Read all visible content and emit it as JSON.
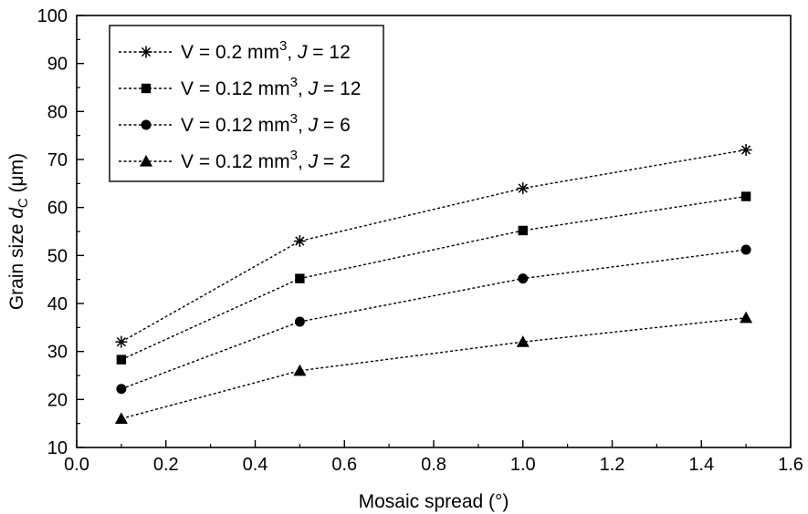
{
  "chart_data": {
    "type": "line",
    "title": "",
    "xlabel": "Mosaic spread (°)",
    "ylabel": {
      "prefix": "Grain size ",
      "symbol": "d",
      "subscript": "C",
      "suffix": " (μm)"
    },
    "xlim": [
      0.0,
      1.6
    ],
    "ylim": [
      10,
      100
    ],
    "xticks": [
      "0.0",
      "0.2",
      "0.4",
      "0.6",
      "0.8",
      "1.0",
      "1.2",
      "1.4",
      "1.6"
    ],
    "yticks": [
      "10",
      "20",
      "30",
      "40",
      "50",
      "60",
      "70",
      "80",
      "90",
      "100"
    ],
    "grid": false,
    "legend_position": "top-left",
    "x": [
      0.1,
      0.5,
      1.0,
      1.5
    ],
    "series": [
      {
        "marker": "asterisk",
        "values": [
          32,
          53,
          64,
          72
        ],
        "label": {
          "v": "V = 0.2 mm",
          "exp": "3",
          "sep": ", ",
          "j": "J",
          "eq": " = 12"
        }
      },
      {
        "marker": "square",
        "values": [
          28.3,
          45.2,
          55.2,
          62.3
        ],
        "label": {
          "v": "V = 0.12 mm",
          "exp": "3",
          "sep": ", ",
          "j": "J",
          "eq": " = 12"
        }
      },
      {
        "marker": "circle",
        "values": [
          22.2,
          36.2,
          45.2,
          51.2
        ],
        "label": {
          "v": "V = 0.12 mm",
          "exp": "3",
          "sep": ", ",
          "j": "J",
          "eq": " = 6"
        }
      },
      {
        "marker": "triangle",
        "values": [
          16,
          26,
          32,
          37
        ],
        "label": {
          "v": "V = 0.12 mm",
          "exp": "3",
          "sep": ", ",
          "j": "J",
          "eq": " = 2"
        }
      }
    ]
  }
}
